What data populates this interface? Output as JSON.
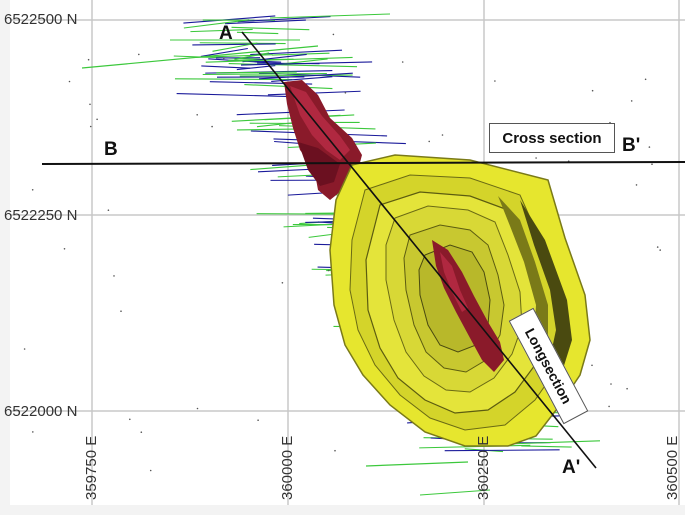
{
  "grid": {
    "northings": [
      "6522500 N",
      "6522250 N",
      "6522000 N"
    ],
    "eastings": [
      "359750 E",
      "360000 E",
      "360250 E",
      "360500 E"
    ]
  },
  "sections": {
    "long_start": "A",
    "long_end": "A'",
    "cross_start": "B",
    "cross_end": "B'",
    "cross_label": "Cross section",
    "long_label": "Longsection"
  },
  "colors": {
    "pit": "#e6e62e",
    "pit_shadow": "#5c5c10",
    "orebody": "#8a1a2a",
    "drill_green": "#3cc83c",
    "drill_blue": "#1a1a9a",
    "gridline": "#c8c8c8"
  }
}
